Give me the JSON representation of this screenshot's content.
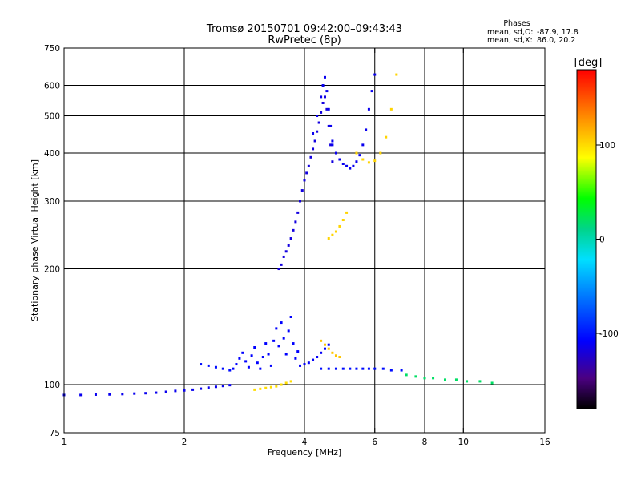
{
  "chart_data": {
    "type": "scatter",
    "title": "Tromsø 20150701 09:42:00–09:43:43",
    "subtitle": "RwPretec (8p)",
    "xlabel": "Frequency [MHz]",
    "ylabel": "Stationary phase Virtual Height [km]",
    "x_scale": "log",
    "y_scale": "log",
    "xlim": [
      1,
      16
    ],
    "ylim": [
      75,
      750
    ],
    "x_ticks": [
      1,
      2,
      4,
      6,
      8,
      10,
      16
    ],
    "y_ticks": [
      75,
      100,
      200,
      300,
      400,
      500,
      600,
      750
    ],
    "grid": true,
    "phase_stats": {
      "heading": "Phases",
      "o_label": "mean, sd,O:",
      "o_values": "-87.9, 17.8",
      "x_label": "mean, sd,X:",
      "x_values": "86.0, 20.2"
    },
    "colorbar": {
      "label": "[deg]",
      "range": [
        -180,
        180
      ],
      "ticks": [
        100,
        0,
        -100
      ]
    },
    "series": [
      {
        "name": "",
        "traces": [
          {
            "x": [
              1.0,
              1.1,
              1.2,
              1.3,
              1.4,
              1.5,
              1.6,
              1.7,
              1.8,
              1.9,
              2.0,
              2.1,
              2.2,
              2.3,
              2.4,
              2.5,
              2.6
            ],
            "y": [
              94,
              94,
              94.2,
              94.3,
              94.5,
              94.8,
              95,
              95.3,
              95.8,
              96.3,
              96.6,
              97,
              97.6,
              98.2,
              98.7,
              99.2,
              99.7
            ],
            "phase": -115
          },
          {
            "x": [
              2.2,
              2.3,
              2.4,
              2.5,
              2.6
            ],
            "y": [
              113,
              112,
              111,
              110,
              109
            ],
            "phase": -105
          },
          {
            "x": [
              2.65,
              2.7,
              2.75,
              2.8,
              2.85,
              2.9,
              2.95,
              3.0,
              3.05,
              3.1,
              3.15,
              3.2,
              3.25,
              3.3,
              3.35,
              3.4,
              3.45,
              3.5,
              3.55,
              3.6,
              3.65,
              3.7,
              3.75,
              3.8,
              3.85
            ],
            "y": [
              110,
              113,
              117,
              121,
              115,
              111,
              119,
              125,
              114,
              110,
              118,
              128,
              120,
              112,
              130,
              140,
              126,
              145,
              132,
              120,
              138,
              150,
              128,
              117,
              122
            ],
            "phase": -110
          },
          {
            "x": [
              3.0,
              3.1,
              3.2,
              3.3,
              3.4,
              3.5,
              3.6,
              3.7
            ],
            "y": [
              97,
              97.5,
              98,
              98.5,
              99,
              100,
              101,
              102
            ],
            "phase": 112
          },
          {
            "x": [
              3.45,
              3.5,
              3.55,
              3.6,
              3.65,
              3.7,
              3.75,
              3.8,
              3.85,
              3.9,
              3.95,
              4.0,
              4.05,
              4.1,
              4.15,
              4.2,
              4.25,
              4.3,
              4.35,
              4.4,
              4.45,
              4.5,
              4.55,
              4.6,
              4.65,
              4.7
            ],
            "y": [
              200,
              205,
              215,
              222,
              230,
              240,
              252,
              265,
              280,
              300,
              320,
              340,
              355,
              370,
              390,
              410,
              430,
              455,
              480,
              510,
              540,
              560,
              520,
              470,
              420,
              380
            ],
            "phase": -120
          },
          {
            "x": [
              4.2,
              4.3,
              4.4,
              4.45,
              4.5,
              4.55,
              4.6,
              4.65,
              4.7
            ],
            "y": [
              450,
              500,
              560,
              600,
              630,
              580,
              520,
              470,
              430
            ],
            "phase": -115
          },
          {
            "x": [
              4.7,
              4.8,
              4.9,
              5.0,
              5.1,
              5.2,
              5.3,
              5.4,
              5.5,
              5.6,
              5.7,
              5.8,
              5.9,
              6.0
            ],
            "y": [
              420,
              400,
              385,
              375,
              370,
              365,
              370,
              380,
              395,
              420,
              460,
              520,
              580,
              640
            ],
            "phase": -115
          },
          {
            "x": [
              3.9,
              4.0,
              4.1,
              4.2,
              4.3,
              4.4,
              4.5,
              4.6
            ],
            "y": [
              112,
              113,
              114,
              116,
              118,
              121,
              124,
              127
            ],
            "phase": -112
          },
          {
            "x": [
              4.4,
              4.5,
              4.6,
              4.7,
              4.8,
              4.9
            ],
            "y": [
              130,
              127,
              124,
              121,
              119,
              118
            ],
            "phase": 120
          },
          {
            "x": [
              4.6,
              4.7,
              4.8,
              4.9,
              5.0,
              5.1
            ],
            "y": [
              240,
              245,
              250,
              258,
              268,
              280
            ],
            "phase": 115
          },
          {
            "x": [
              5.4,
              5.6,
              5.8,
              6.0,
              6.2,
              6.4,
              6.6,
              6.8
            ],
            "y": [
              400,
              385,
              378,
              382,
              400,
              440,
              520,
              640
            ],
            "phase": 115
          },
          {
            "x": [
              4.4,
              4.6,
              4.8,
              5.0,
              5.2,
              5.4,
              5.6,
              5.8,
              6.0,
              6.3,
              6.6,
              7.0
            ],
            "y": [
              110,
              110,
              110,
              110,
              110,
              110,
              110,
              110,
              110,
              110,
              109,
              109
            ],
            "phase": -105
          },
          {
            "x": [
              7.2,
              7.6,
              8.0,
              8.4,
              9.0,
              9.6,
              10.2,
              11.0,
              11.8
            ],
            "y": [
              106,
              105,
              104,
              104,
              103,
              103,
              102,
              102,
              101
            ],
            "phase": 20
          }
        ]
      }
    ]
  }
}
